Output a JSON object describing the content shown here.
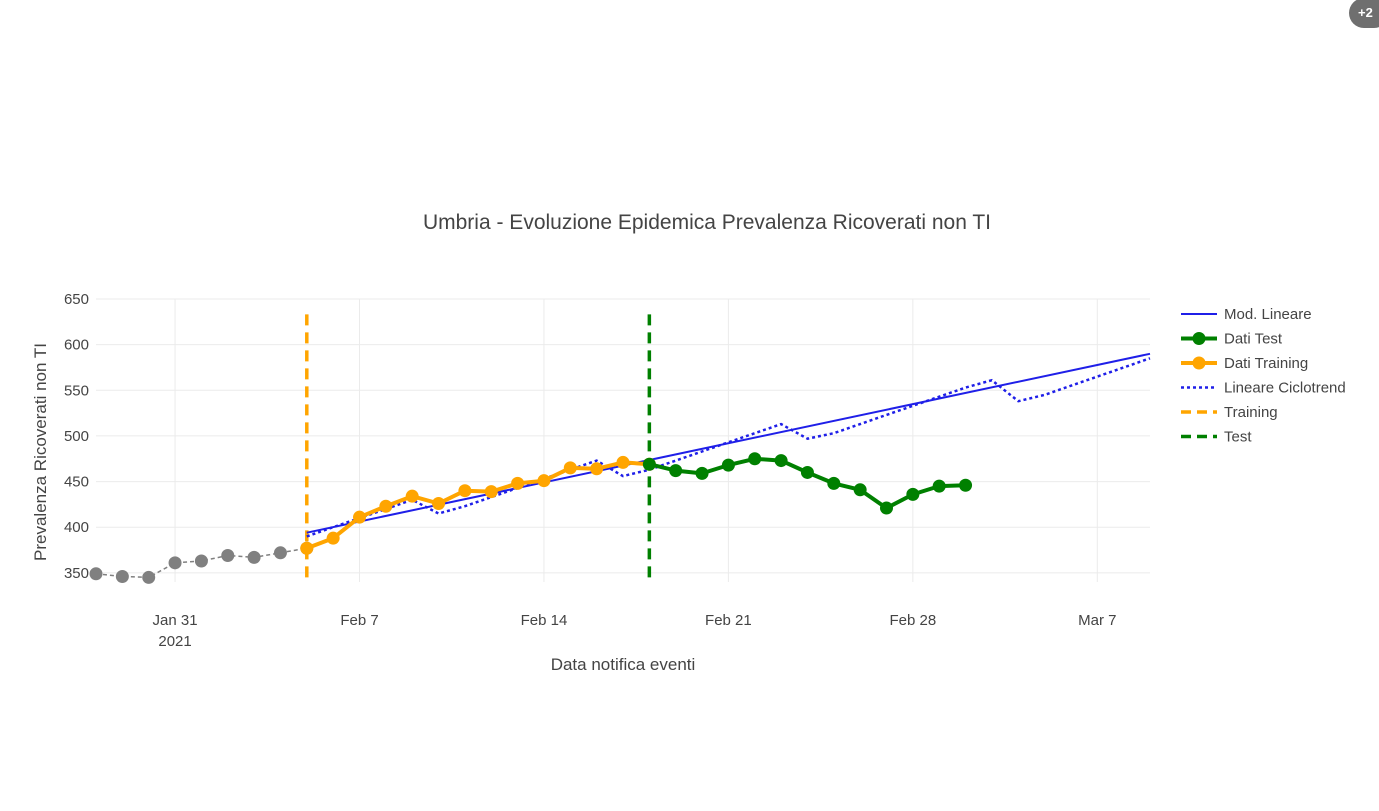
{
  "badge": {
    "label": "+2"
  },
  "chart_data": {
    "type": "line",
    "title": "Umbria - Evoluzione Epidemica Prevalenza Ricoverati non TI",
    "xlabel": "Data notifica eventi",
    "ylabel": "Prevalenza Ricoverati non TI",
    "xlim": [
      "2021-01-28",
      "2021-03-09"
    ],
    "ylim": [
      340,
      650
    ],
    "yticks": [
      350,
      400,
      450,
      500,
      550,
      600,
      650
    ],
    "xticks": [
      {
        "date": "2021-01-31",
        "label": "Jan 31",
        "sublabel": "2021"
      },
      {
        "date": "2021-02-07",
        "label": "Feb 7",
        "sublabel": ""
      },
      {
        "date": "2021-02-14",
        "label": "Feb 14",
        "sublabel": ""
      },
      {
        "date": "2021-02-21",
        "label": "Feb 21",
        "sublabel": ""
      },
      {
        "date": "2021-02-28",
        "label": "Feb 28",
        "sublabel": ""
      },
      {
        "date": "2021-03-07",
        "label": "Mar 7",
        "sublabel": ""
      }
    ],
    "grid": true,
    "legend_position": "right",
    "series": [
      {
        "name": "Mod. Lineare",
        "style": "line",
        "color": "#1f1fe8",
        "x": [
          "2021-02-05",
          "2021-03-09"
        ],
        "y": [
          394,
          590
        ]
      },
      {
        "name": "Dati Test",
        "style": "markers-line",
        "color": "#008000",
        "x": [
          "2021-02-18",
          "2021-02-19",
          "2021-02-20",
          "2021-02-21",
          "2021-02-22",
          "2021-02-23",
          "2021-02-24",
          "2021-02-25",
          "2021-02-26",
          "2021-02-27",
          "2021-02-28",
          "2021-03-01",
          "2021-03-02"
        ],
        "y": [
          469,
          462,
          459,
          468,
          475,
          473,
          460,
          448,
          441,
          421,
          436,
          445,
          446
        ]
      },
      {
        "name": "Dati Training",
        "style": "markers-line",
        "color": "#ffa500",
        "x": [
          "2021-02-05",
          "2021-02-06",
          "2021-02-07",
          "2021-02-08",
          "2021-02-09",
          "2021-02-10",
          "2021-02-11",
          "2021-02-12",
          "2021-02-13",
          "2021-02-14",
          "2021-02-15",
          "2021-02-16",
          "2021-02-17",
          "2021-02-18"
        ],
        "y": [
          377,
          388,
          411,
          423,
          434,
          426,
          440,
          439,
          448,
          451,
          465,
          464,
          471,
          469
        ]
      },
      {
        "name": "Lineare Ciclotrend",
        "style": "dotted",
        "color": "#1f1fe8",
        "x": [
          "2021-02-05",
          "2021-02-06",
          "2021-02-07",
          "2021-02-08",
          "2021-02-09",
          "2021-02-10",
          "2021-02-11",
          "2021-02-12",
          "2021-02-13",
          "2021-02-14",
          "2021-02-15",
          "2021-02-16",
          "2021-02-17",
          "2021-02-18",
          "2021-02-19",
          "2021-02-20",
          "2021-02-21",
          "2021-02-22",
          "2021-02-23",
          "2021-02-24",
          "2021-02-25",
          "2021-02-26",
          "2021-02-27",
          "2021-02-28",
          "2021-03-01",
          "2021-03-02",
          "2021-03-03",
          "2021-03-04",
          "2021-03-05",
          "2021-03-06",
          "2021-03-07",
          "2021-03-08",
          "2021-03-09"
        ],
        "y": [
          390,
          400,
          410,
          420,
          430,
          415,
          423,
          433,
          443,
          453,
          463,
          473,
          456,
          463,
          473,
          483,
          493,
          503,
          513,
          497,
          503,
          513,
          523,
          533,
          543,
          553,
          561,
          538,
          545,
          555,
          565,
          575,
          585
        ]
      },
      {
        "name": "Training",
        "style": "dashed-vline",
        "color": "#ffa500",
        "x": [
          "2021-02-05",
          "2021-02-05"
        ],
        "y": [
          345,
          640
        ]
      },
      {
        "name": "Test",
        "style": "dashed-vline",
        "color": "#008000",
        "x": [
          "2021-02-18",
          "2021-02-18"
        ],
        "y": [
          345,
          640
        ]
      }
    ],
    "context_series": {
      "style": "markers-dashed",
      "color": "#808080",
      "x": [
        "2021-01-28",
        "2021-01-29",
        "2021-01-30",
        "2021-01-31",
        "2021-02-01",
        "2021-02-02",
        "2021-02-03",
        "2021-02-04",
        "2021-02-05"
      ],
      "y": [
        349,
        346,
        345,
        361,
        363,
        369,
        367,
        372,
        377
      ]
    }
  }
}
